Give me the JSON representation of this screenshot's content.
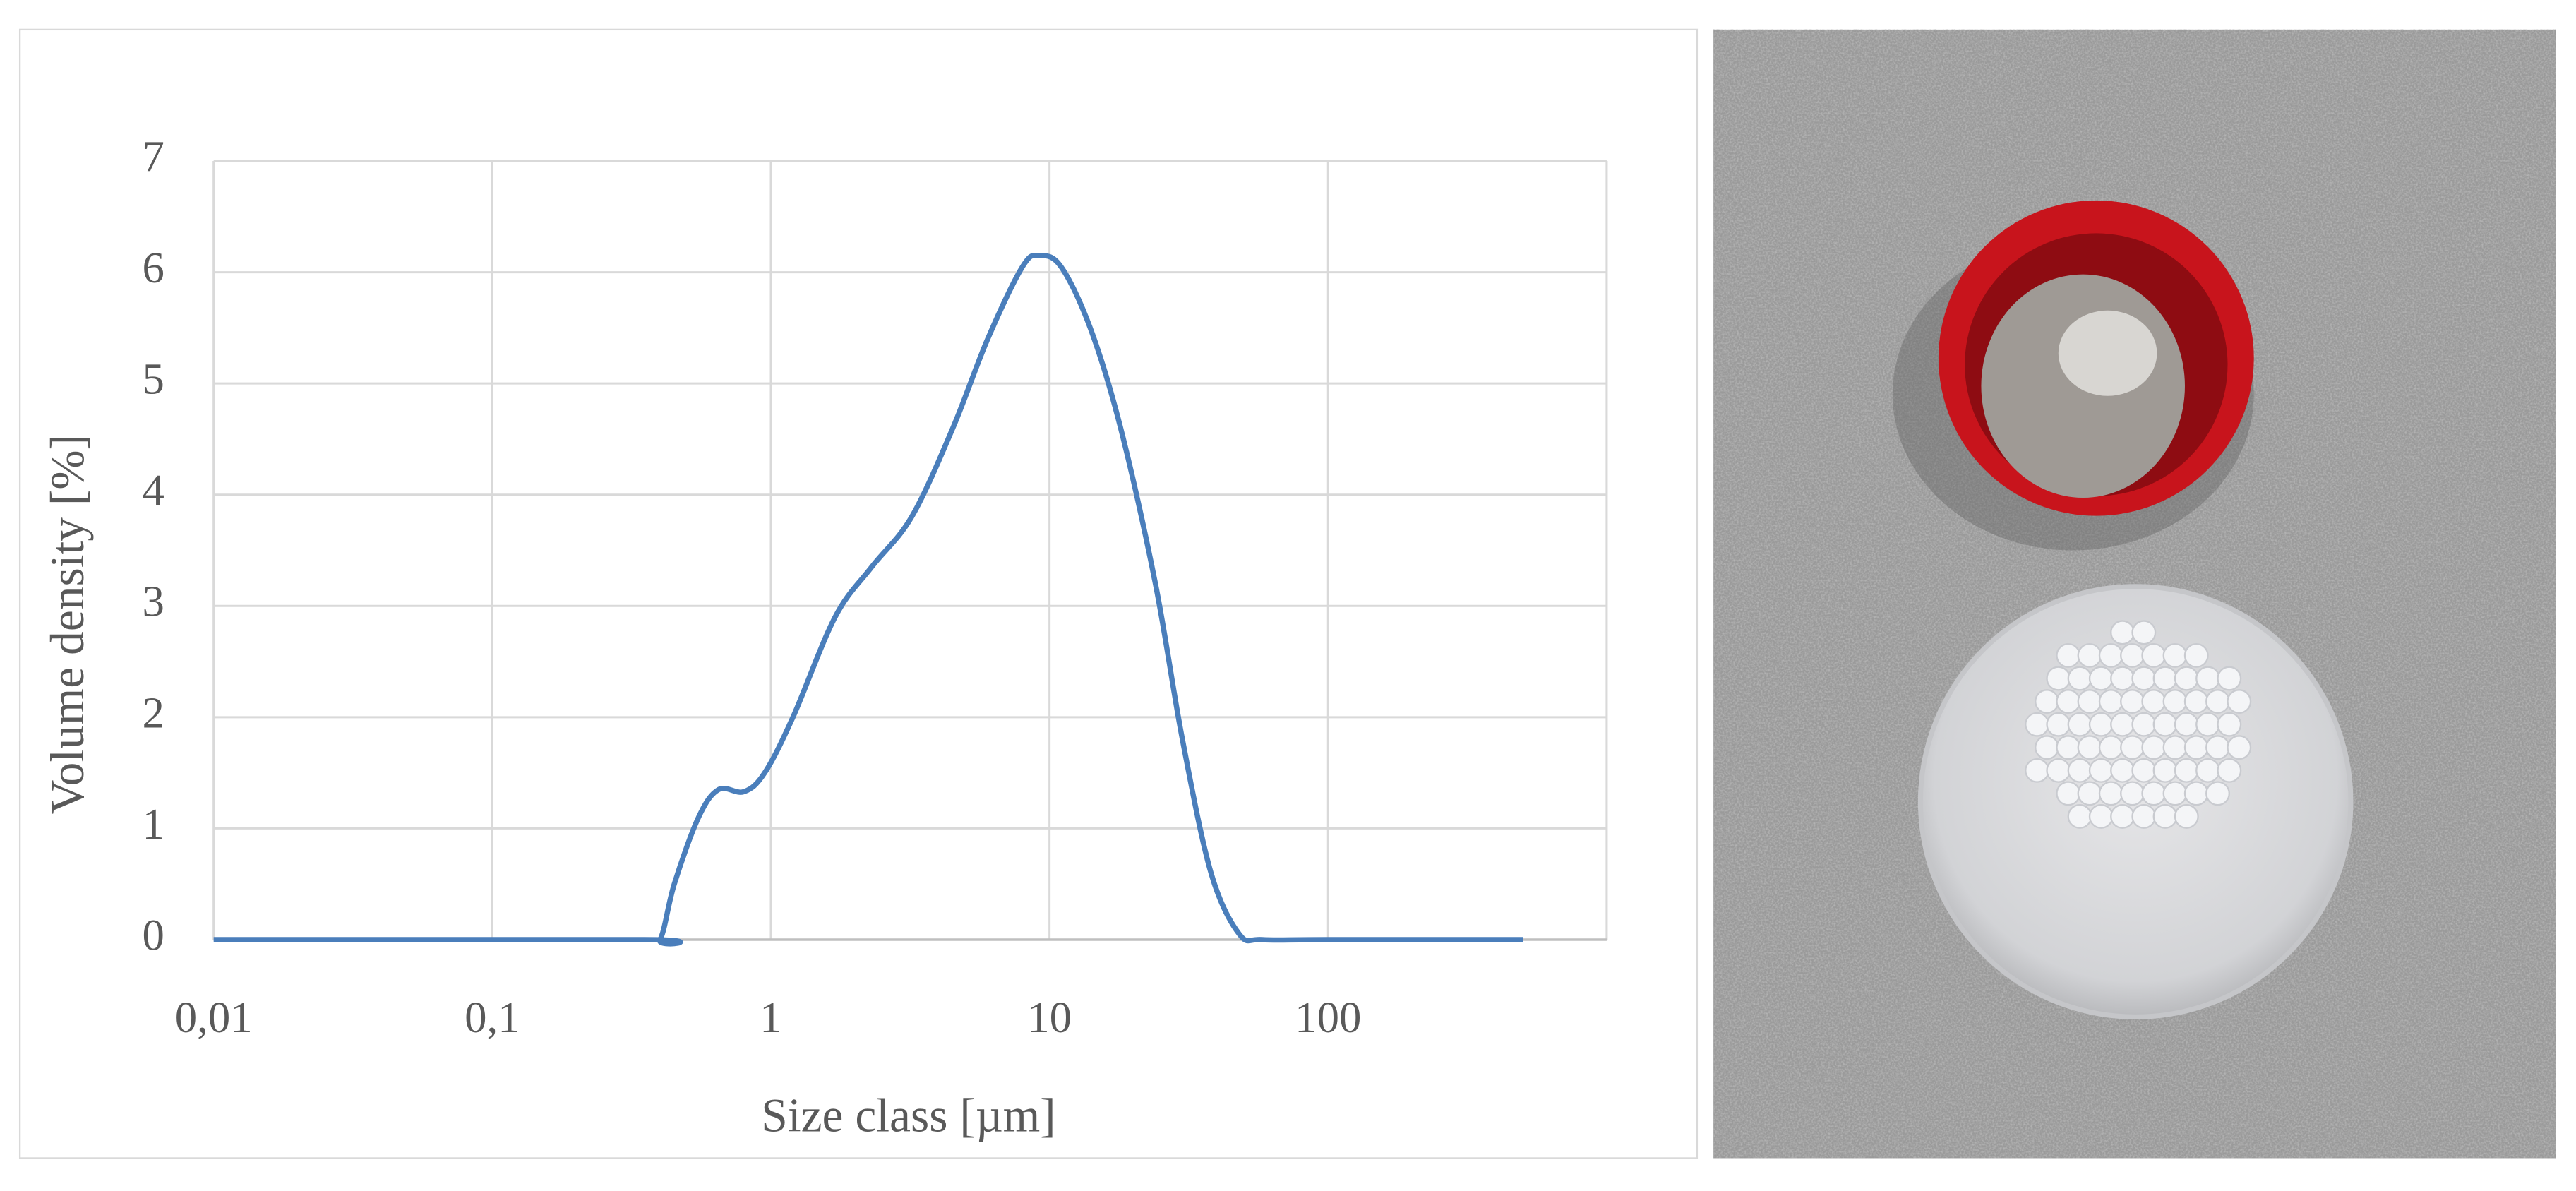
{
  "chart_data": {
    "type": "line",
    "xscale": "log",
    "xlabel": "Size class [µm]",
    "ylabel": "Volume density [%]",
    "xlim": [
      0.01,
      1000
    ],
    "ylim": [
      0,
      7
    ],
    "xticks": [
      {
        "value": 0.01,
        "label": "0,01"
      },
      {
        "value": 0.1,
        "label": "0,1"
      },
      1,
      10,
      100
    ],
    "yticks": [
      0,
      1,
      2,
      3,
      4,
      5,
      6,
      7
    ],
    "grid": true,
    "series": [
      {
        "name": "Volume density",
        "color": "#4a7ebb",
        "x": [
          0.01,
          0.35,
          0.4,
          0.45,
          0.55,
          0.65,
          0.8,
          0.95,
          1.2,
          1.7,
          2.3,
          3.2,
          4.5,
          6,
          8,
          9.2,
          11,
          14,
          18,
          24,
          30,
          38,
          48,
          58,
          100,
          500
        ],
        "values": [
          0,
          0,
          0,
          0.5,
          1.1,
          1.35,
          1.33,
          1.5,
          2.0,
          2.9,
          3.35,
          3.8,
          4.6,
          5.4,
          6.05,
          6.15,
          6.05,
          5.5,
          4.6,
          3.2,
          1.8,
          0.6,
          0.05,
          0,
          0,
          0
        ]
      }
    ]
  }
}
